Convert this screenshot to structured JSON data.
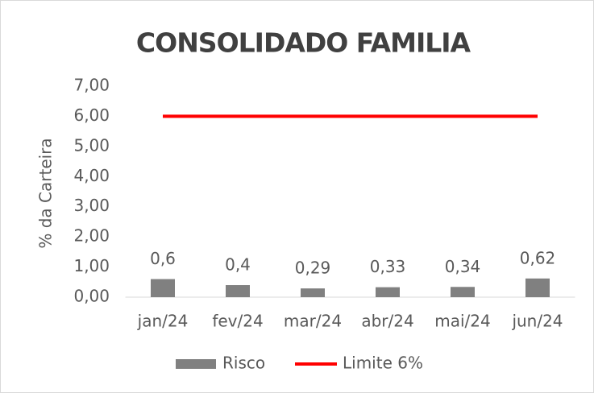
{
  "chart_data": {
    "type": "combo",
    "title": "CONSOLIDADO FAMILIA",
    "y_label": "% da Carteira",
    "categories": [
      "jan/24",
      "fev/24",
      "mar/24",
      "abr/24",
      "mai/24",
      "jun/24"
    ],
    "series": [
      {
        "name": "Risco",
        "type": "bar",
        "color": "#808080",
        "values": [
          0.6,
          0.4,
          0.29,
          0.33,
          0.34,
          0.62
        ],
        "value_labels": [
          "0,6",
          "0,4",
          "0,29",
          "0,33",
          "0,34",
          "0,62"
        ]
      },
      {
        "name": "Limite 6%",
        "type": "line",
        "color": "#ff0000",
        "values": [
          6,
          6,
          6,
          6,
          6,
          6
        ]
      }
    ],
    "ylim": [
      0,
      7
    ],
    "yticks": [
      {
        "value": 0,
        "label": "0,00"
      },
      {
        "value": 1,
        "label": "1,00"
      },
      {
        "value": 2,
        "label": "2,00"
      },
      {
        "value": 3,
        "label": "3,00"
      },
      {
        "value": 4,
        "label": "4,00"
      },
      {
        "value": 5,
        "label": "5,00"
      },
      {
        "value": 6,
        "label": "6,00"
      },
      {
        "value": 7,
        "label": "7,00"
      }
    ],
    "grid": false,
    "legend": "bottom"
  }
}
